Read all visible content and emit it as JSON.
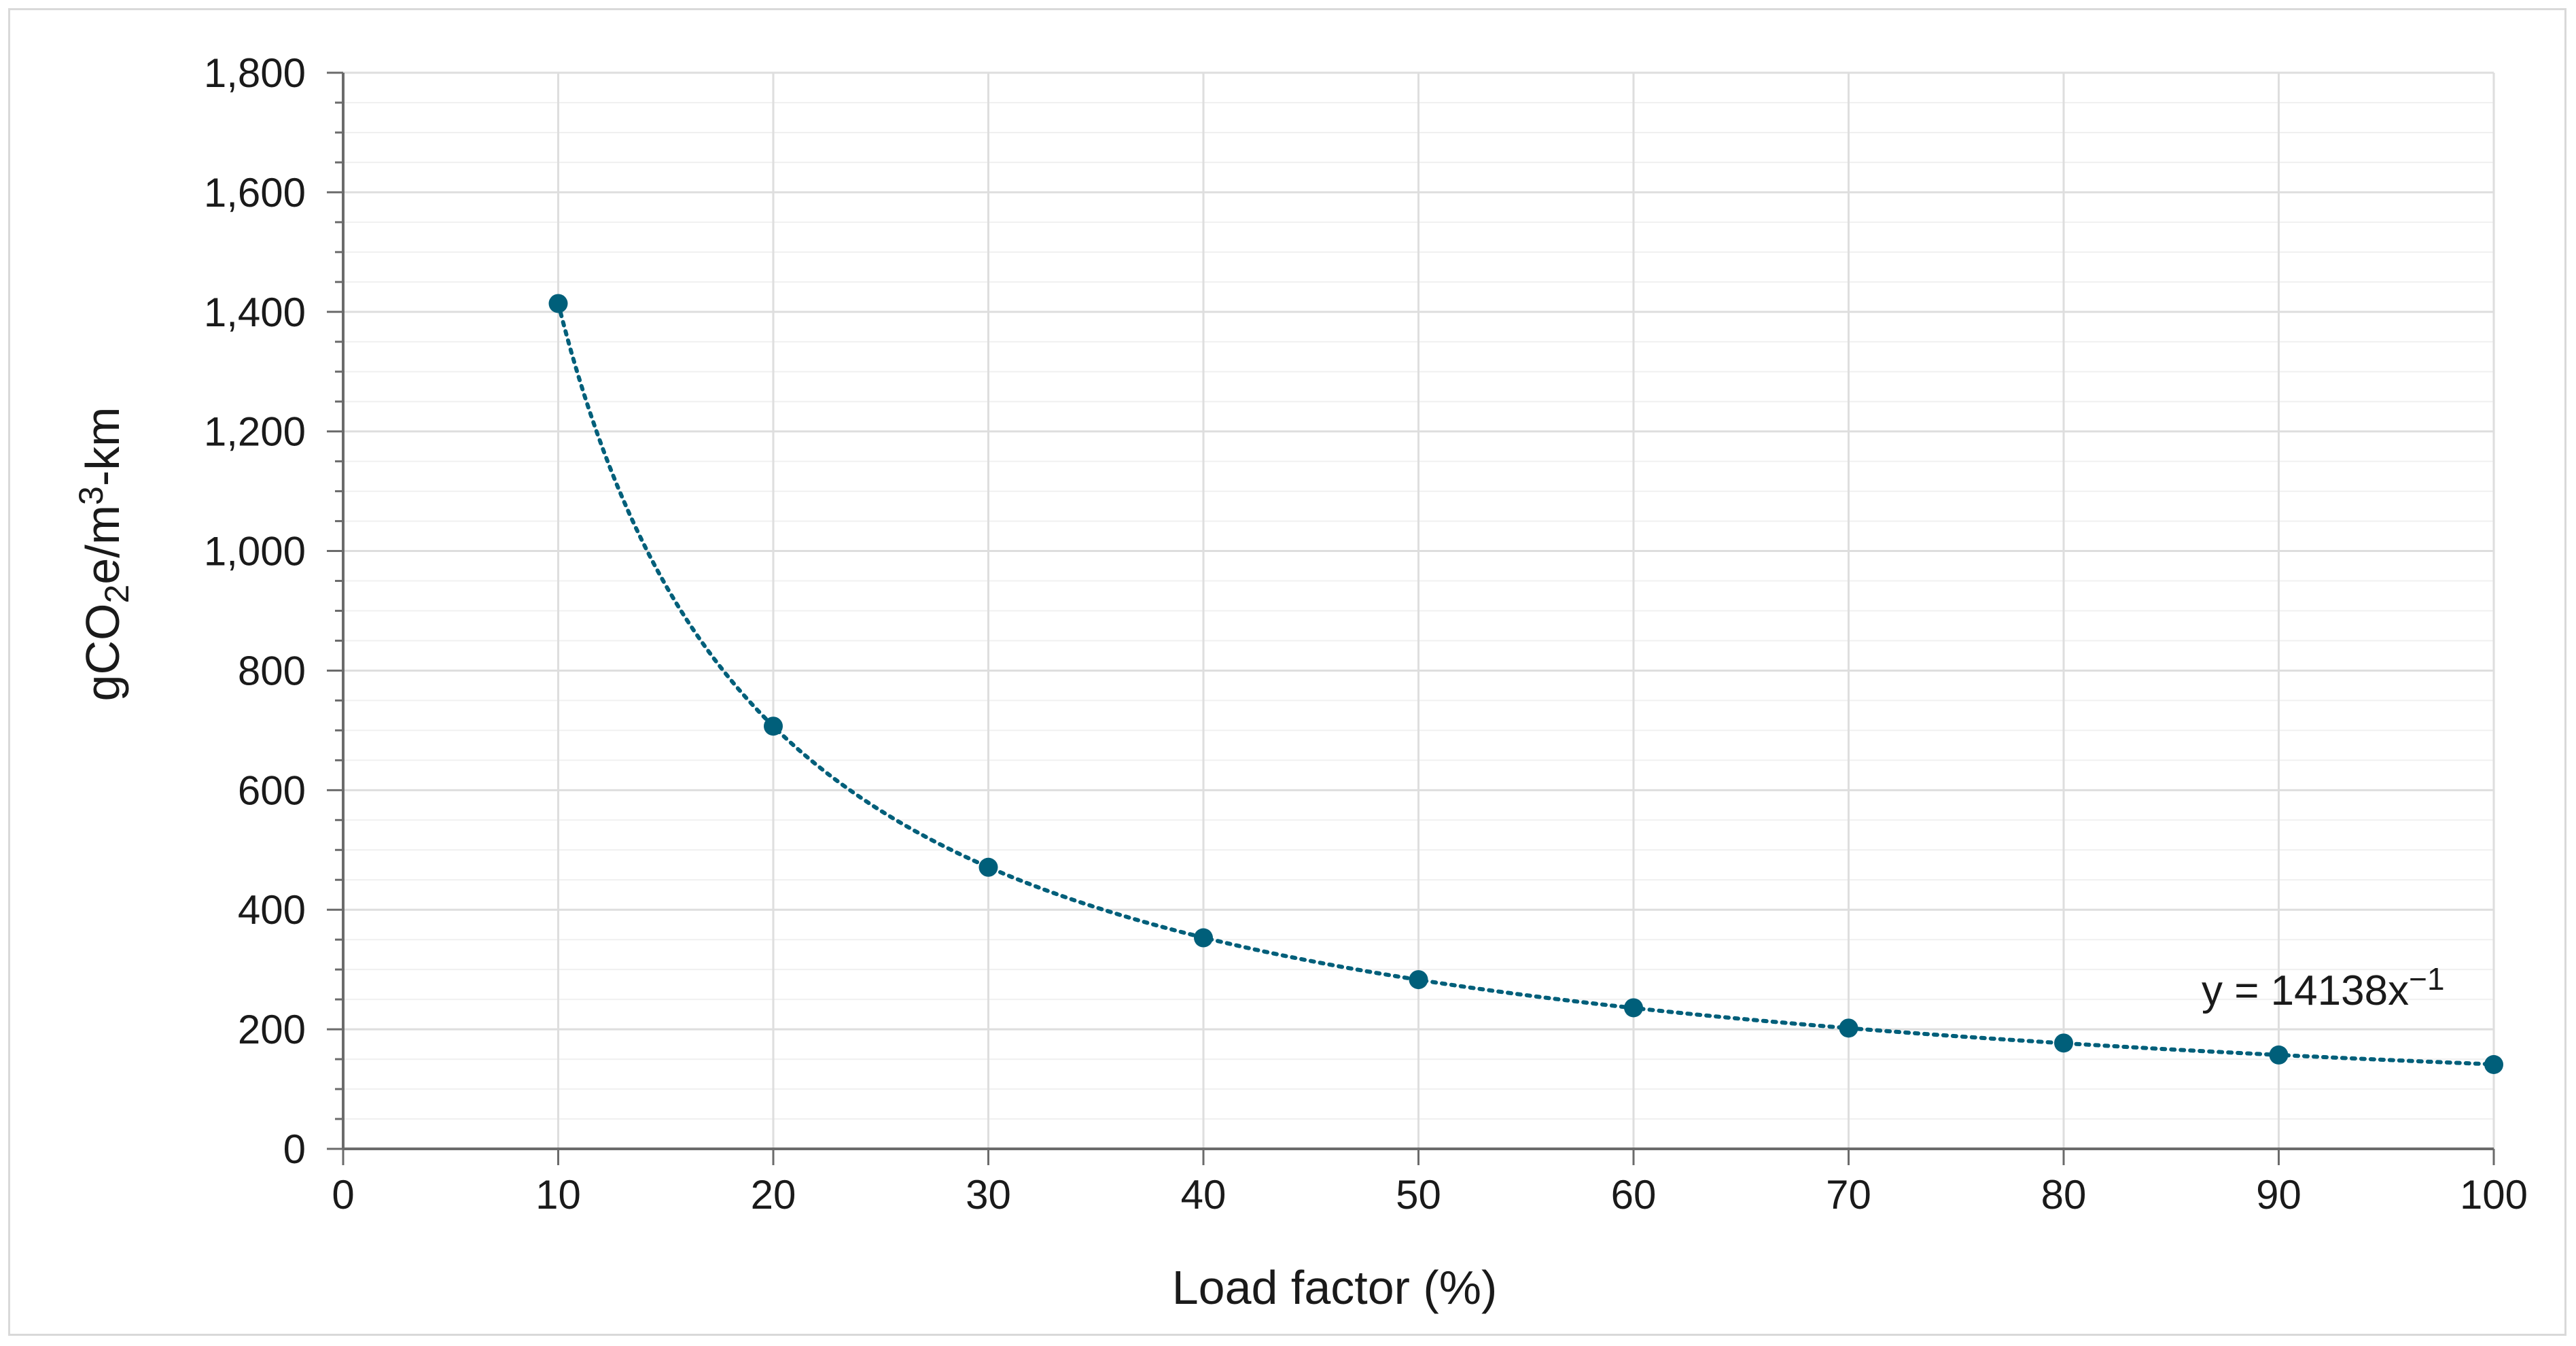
{
  "chart_data": {
    "type": "scatter",
    "xlabel": "Load factor (%)",
    "ylabel": {
      "base": "gCO",
      "sub": "2",
      "mid": "e/m",
      "sup": "3",
      "end": "-km"
    },
    "xlim": [
      0,
      100
    ],
    "ylim": [
      0,
      1800
    ],
    "x_ticks": [
      0,
      10,
      20,
      30,
      40,
      50,
      60,
      70,
      80,
      90,
      100
    ],
    "y_ticks": [
      0,
      200,
      400,
      600,
      800,
      1000,
      1200,
      1400,
      1600,
      1800
    ],
    "x_tick_labels": [
      "0",
      "10",
      "20",
      "30",
      "40",
      "50",
      "60",
      "70",
      "80",
      "90",
      "100"
    ],
    "y_tick_labels": [
      "0",
      "200",
      "400",
      "600",
      "800",
      "1,000",
      "1,200",
      "1,400",
      "1,600",
      "1,800"
    ],
    "grid": true,
    "series": [
      {
        "x": [
          10,
          20,
          30,
          40,
          50,
          60,
          70,
          80,
          90,
          100
        ],
        "y": [
          1414,
          707,
          471,
          353,
          283,
          236,
          202,
          177,
          157,
          141
        ],
        "color": "#005f7a"
      }
    ],
    "trendline": {
      "type": "power",
      "coefficient": 14138,
      "exponent": -1,
      "style": "dotted",
      "color": "#005f7a",
      "label": {
        "base": "y = 14138x",
        "sup": "−1"
      }
    }
  }
}
